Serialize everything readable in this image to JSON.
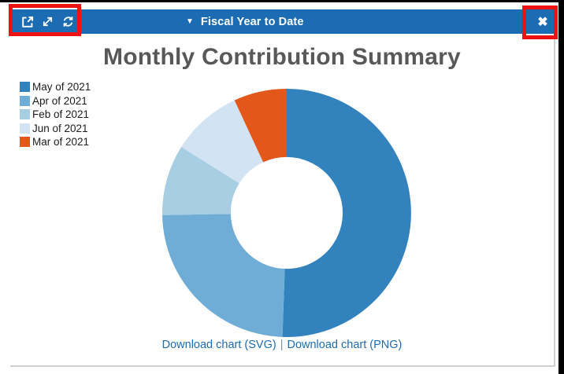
{
  "header": {
    "toolbar_icons": [
      {
        "name": "open-external-icon"
      },
      {
        "name": "expand-icon"
      },
      {
        "name": "refresh-icon"
      }
    ],
    "dropdown": {
      "caret": "▼",
      "label": "Fiscal Year to Date"
    },
    "close_icon": "✖"
  },
  "chart": {
    "title": "Monthly Contribution Summary"
  },
  "chart_data": {
    "type": "pie",
    "donut": true,
    "title": "Monthly Contribution Summary",
    "categories": [
      "May of 2021",
      "Apr of 2021",
      "Feb of 2021",
      "Jun of 2021",
      "Mar of 2021"
    ],
    "values": [
      50.6,
      24.2,
      9.2,
      9.2,
      6.9
    ],
    "unit": "percent-of-total",
    "colors": [
      "#3182bd",
      "#6fadd6",
      "#a7cee3",
      "#d2e3f3",
      "#e4571b"
    ],
    "start_angle_deg": 0,
    "direction": "clockwise",
    "inner_radius_ratio": 0.45,
    "legend_position": "top-left",
    "grid": false
  },
  "links": {
    "svg_label": "Download chart (SVG)",
    "separator": "|",
    "png_label": "Download chart (PNG)"
  },
  "colors": {
    "header_bar": "#1b6cb3",
    "link": "#1b6cb3",
    "title_text": "#58585a",
    "annotation_highlight": "#ee1212",
    "panel_border": "#cfcfcf",
    "frame_black": "#000000"
  }
}
